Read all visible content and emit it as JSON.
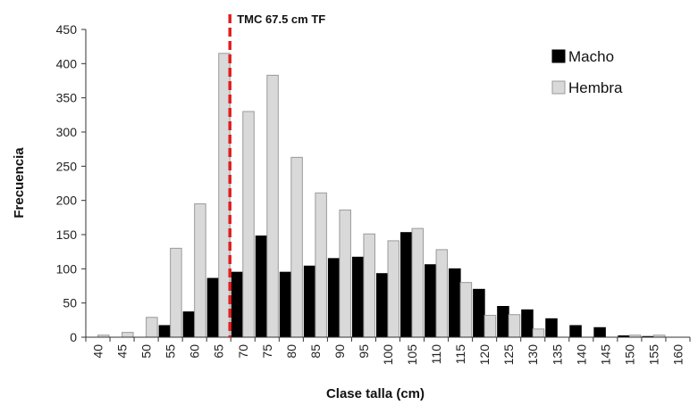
{
  "chart_data": {
    "type": "bar",
    "title": "",
    "xlabel": "Clase talla (cm)",
    "ylabel": "Frecuencia",
    "ylim": [
      0,
      450
    ],
    "yticks": [
      0,
      50,
      100,
      150,
      200,
      250,
      300,
      350,
      400,
      450
    ],
    "grid": false,
    "legend_position": "top-right",
    "categories": [
      "40",
      "45",
      "50",
      "55",
      "60",
      "65",
      "70",
      "75",
      "80",
      "85",
      "90",
      "95",
      "100",
      "105",
      "110",
      "115",
      "120",
      "125",
      "130",
      "135",
      "140",
      "145",
      "150",
      "155",
      "160"
    ],
    "series": [
      {
        "name": "Macho",
        "color": "#000000",
        "values": [
          0,
          0,
          0,
          17,
          37,
          86,
          95,
          148,
          95,
          104,
          115,
          117,
          93,
          153,
          106,
          100,
          70,
          45,
          40,
          27,
          17,
          14,
          2,
          1,
          0
        ]
      },
      {
        "name": "Hembra",
        "color": "#d9d9d9",
        "values": [
          3,
          7,
          29,
          130,
          195,
          415,
          330,
          383,
          263,
          211,
          186,
          151,
          141,
          159,
          128,
          80,
          32,
          33,
          12,
          0,
          0,
          0,
          3,
          3,
          0
        ]
      }
    ],
    "annotation": {
      "label": "TMC 67.5 cm TF",
      "x_value": 67.5,
      "color": "#e02020"
    }
  }
}
